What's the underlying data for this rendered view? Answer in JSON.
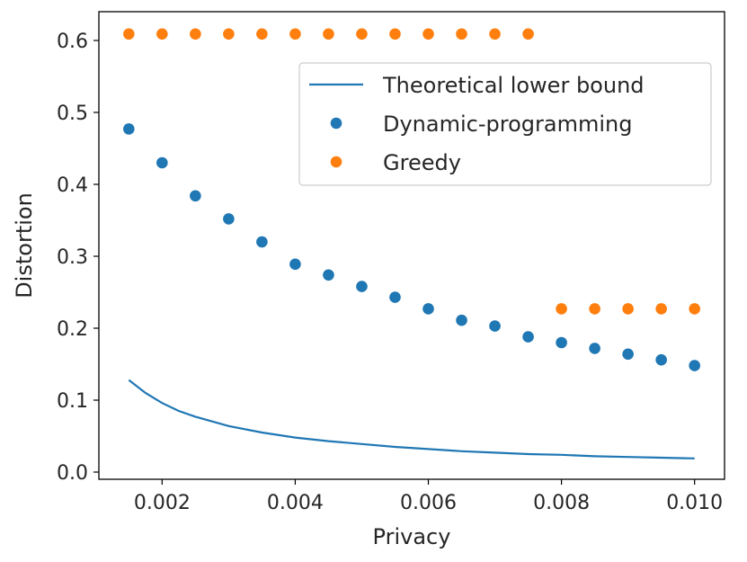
{
  "chart_data": {
    "type": "scatter",
    "title": "",
    "xlabel": "Privacy",
    "ylabel": "Distortion",
    "xlim": [
      0.00105,
      0.01045
    ],
    "ylim": [
      -0.01,
      0.64
    ],
    "xticks": [
      0.002,
      0.004,
      0.006,
      0.008,
      0.01
    ],
    "xtick_labels": [
      "0.002",
      "0.004",
      "0.006",
      "0.008",
      "0.010"
    ],
    "yticks": [
      0.0,
      0.1,
      0.2,
      0.3,
      0.4,
      0.5,
      0.6
    ],
    "ytick_labels": [
      "0.0",
      "0.1",
      "0.2",
      "0.3",
      "0.4",
      "0.5",
      "0.6"
    ],
    "grid": false,
    "legend_position": "upper-right",
    "colors": {
      "blue": "#1f77b4",
      "orange": "#ff7f0e"
    },
    "series": [
      {
        "name": "Theoretical lower bound",
        "kind": "line",
        "color": "#1f77b4",
        "x": [
          0.0015,
          0.00175,
          0.002,
          0.00225,
          0.0025,
          0.003,
          0.0035,
          0.004,
          0.0045,
          0.005,
          0.0055,
          0.006,
          0.0065,
          0.007,
          0.0075,
          0.008,
          0.0085,
          0.009,
          0.0095,
          0.01
        ],
        "y": [
          0.128,
          0.11,
          0.096,
          0.085,
          0.077,
          0.064,
          0.055,
          0.048,
          0.043,
          0.039,
          0.035,
          0.032,
          0.029,
          0.027,
          0.025,
          0.024,
          0.022,
          0.021,
          0.02,
          0.019
        ]
      },
      {
        "name": "Dynamic-programming",
        "kind": "scatter",
        "color": "#1f77b4",
        "x": [
          0.0015,
          0.002,
          0.0025,
          0.003,
          0.0035,
          0.004,
          0.0045,
          0.005,
          0.0055,
          0.006,
          0.0065,
          0.007,
          0.0075,
          0.008,
          0.0085,
          0.009,
          0.0095,
          0.01
        ],
        "y": [
          0.477,
          0.43,
          0.384,
          0.352,
          0.32,
          0.289,
          0.274,
          0.258,
          0.243,
          0.227,
          0.211,
          0.203,
          0.188,
          0.18,
          0.172,
          0.164,
          0.156,
          0.148
        ]
      },
      {
        "name": "Greedy",
        "kind": "scatter",
        "color": "#ff7f0e",
        "x": [
          0.0015,
          0.002,
          0.0025,
          0.003,
          0.0035,
          0.004,
          0.0045,
          0.005,
          0.0055,
          0.006,
          0.0065,
          0.007,
          0.0075,
          0.008,
          0.0085,
          0.009,
          0.0095,
          0.01
        ],
        "y": [
          0.609,
          0.609,
          0.609,
          0.609,
          0.609,
          0.609,
          0.609,
          0.609,
          0.609,
          0.609,
          0.609,
          0.609,
          0.609,
          0.227,
          0.227,
          0.227,
          0.227,
          0.227
        ]
      }
    ]
  }
}
